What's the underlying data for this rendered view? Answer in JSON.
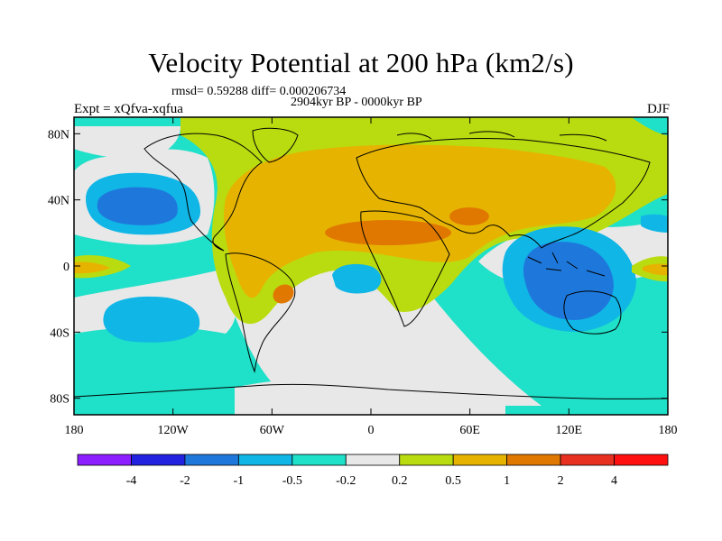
{
  "header": {
    "title": "Velocity Potential at 200 hPa (km2/s)",
    "stats": "rmsd= 0.59288 diff= 0.000206734",
    "period": "2904kyr BP - 0000kyr BP",
    "experiment": "Expt = xQfva-xqfua",
    "season": "DJF"
  },
  "chart_data": {
    "type": "heatmap",
    "title": "Velocity Potential at 200 hPa (km2/s)",
    "xlabel": "",
    "ylabel": "",
    "xlim": [
      -180,
      180
    ],
    "ylim": [
      -90,
      90
    ],
    "x_ticks": [
      {
        "value": -180,
        "label": "180"
      },
      {
        "value": -120,
        "label": "120W"
      },
      {
        "value": -60,
        "label": "60W"
      },
      {
        "value": 0,
        "label": "0"
      },
      {
        "value": 60,
        "label": "60E"
      },
      {
        "value": 120,
        "label": "120E"
      },
      {
        "value": 180,
        "label": "180"
      }
    ],
    "y_ticks": [
      {
        "value": 80,
        "label": "80N"
      },
      {
        "value": 40,
        "label": "40N"
      },
      {
        "value": 0,
        "label": "0"
      },
      {
        "value": -40,
        "label": "40S"
      },
      {
        "value": -80,
        "label": "80S"
      }
    ],
    "colorbar": {
      "levels": [
        "-4",
        "-2",
        "-1",
        "-0.5",
        "-0.2",
        "0.2",
        "0.5",
        "1",
        "2",
        "4"
      ],
      "colors": [
        "#8c1eff",
        "#2222e0",
        "#1e78dc",
        "#10b6e6",
        "#1fe0c8",
        "#e8e8e8",
        "#b8dc10",
        "#e6b400",
        "#e07800",
        "#e83020",
        "#ff1010"
      ]
    },
    "field_regions": [
      {
        "name": "Eurasia-Africa positive anomaly",
        "center": [
          40,
          30
        ],
        "level": "0.5 to 1"
      },
      {
        "name": "Middle East maximum",
        "center": [
          40,
          20
        ],
        "level": "1 to 2"
      },
      {
        "name": "South America maximum",
        "center": [
          -50,
          -15
        ],
        "level": "1 to 2"
      },
      {
        "name": "Maritime continent negative anomaly",
        "center": [
          115,
          -5
        ],
        "level": "-1 to -2"
      },
      {
        "name": "North Pacific negative anomaly",
        "center": [
          -150,
          40
        ],
        "level": "-1 to -2"
      },
      {
        "name": "South Pacific negative anomaly",
        "center": [
          -145,
          -30
        ],
        "level": "-0.5 to -1"
      },
      {
        "name": "South Atlantic negative anomaly",
        "center": [
          -5,
          -5
        ],
        "level": "-0.5 to -1"
      }
    ]
  }
}
